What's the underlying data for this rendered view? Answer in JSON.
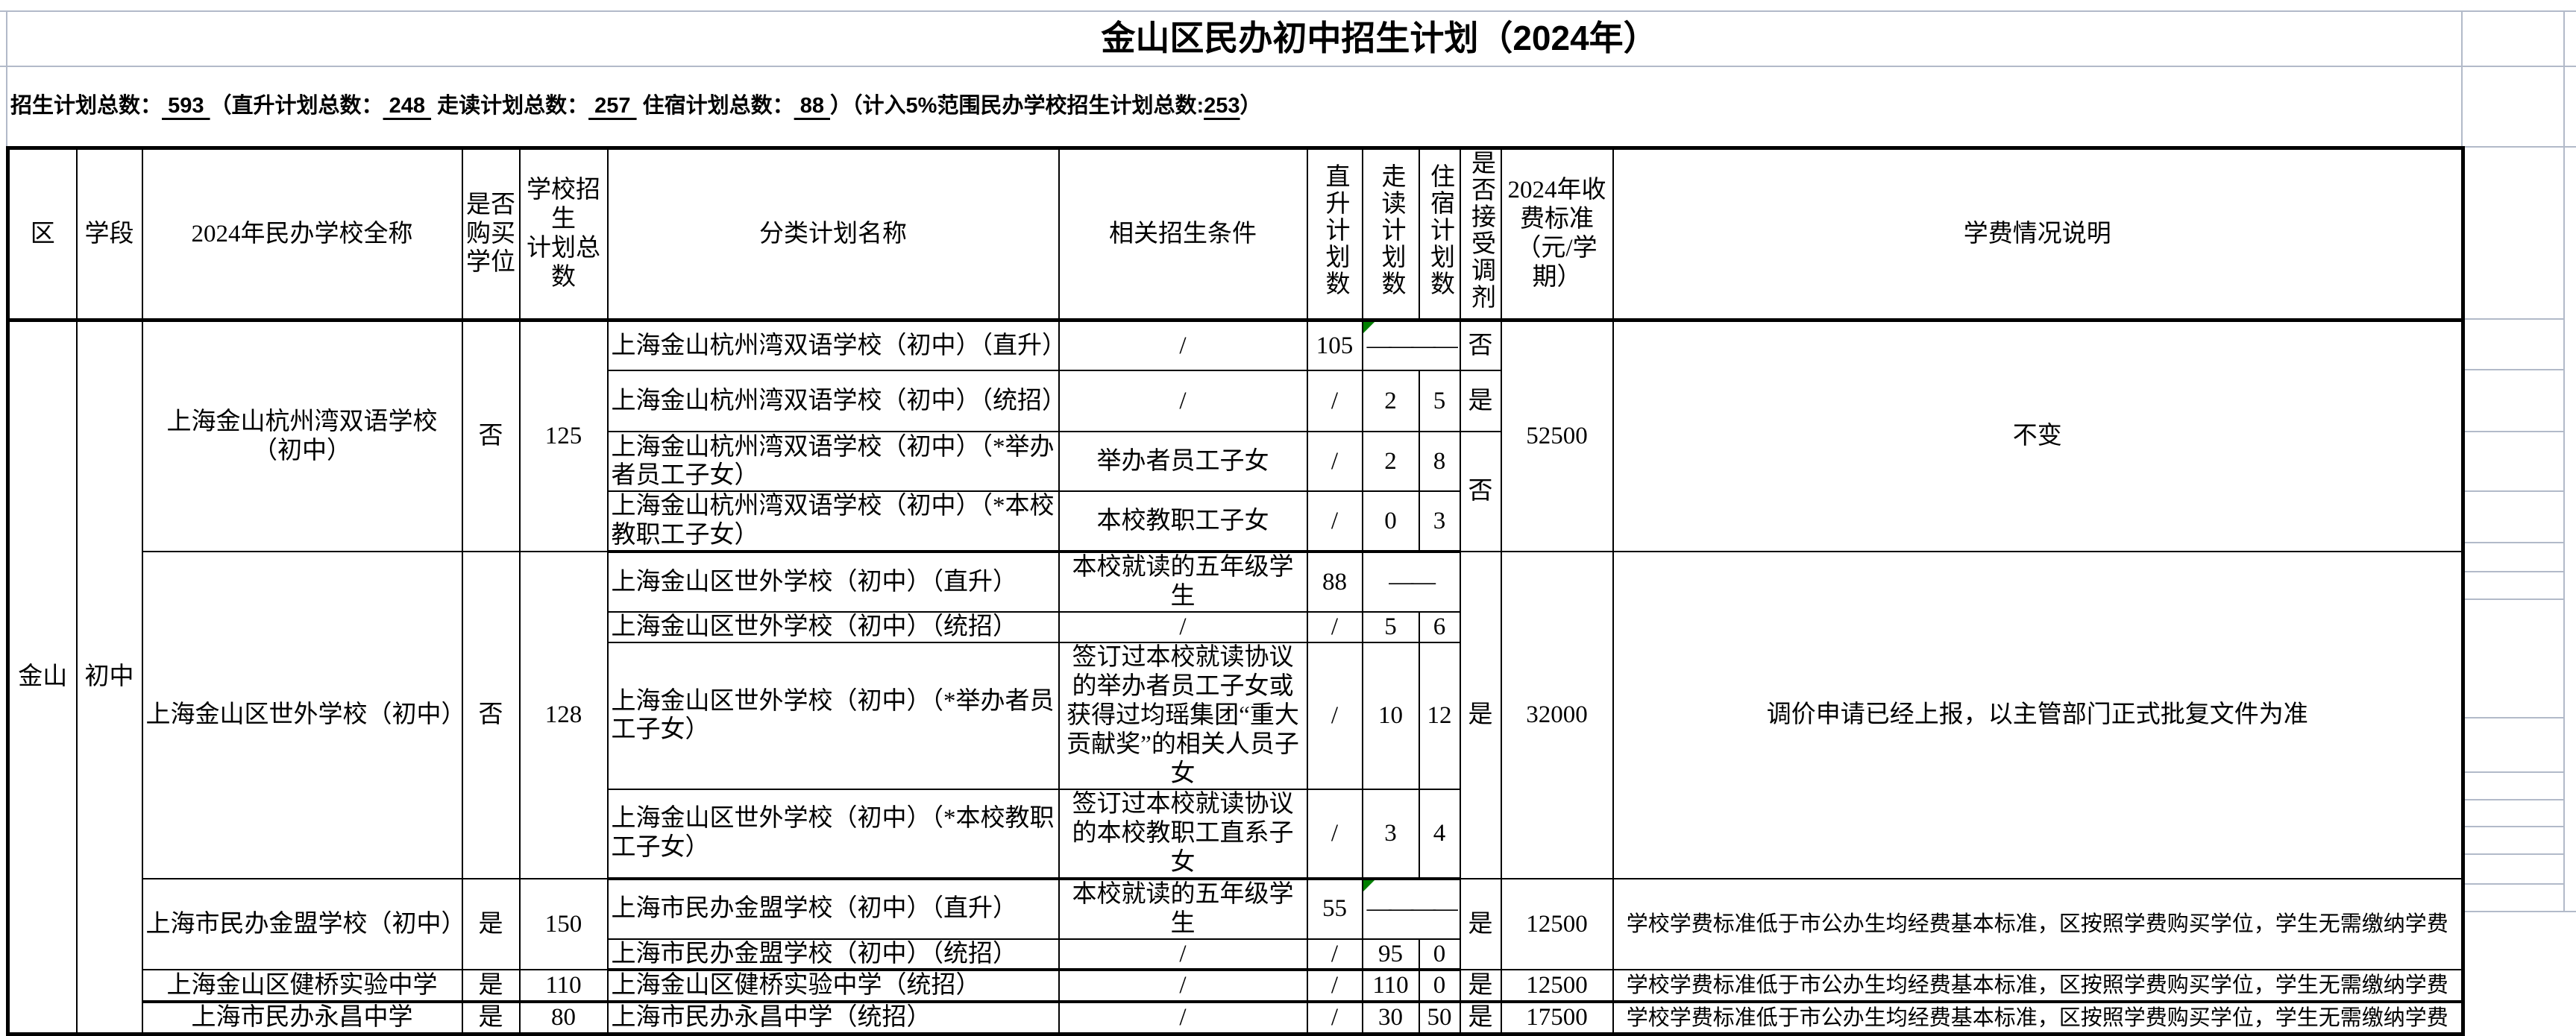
{
  "title": "金山区民办初中招生计划（2024年）",
  "summary": {
    "label_total": "招生计划总数：",
    "total": " 593 ",
    "label_direct": "（直升计划总数：",
    "direct": " 248 ",
    "label_walk": " 走读计划总数：",
    "walk": " 257 ",
    "label_board": " 住宿计划总数：",
    "board": " 88 ",
    "label_5pct": "）（计入5%范围民办学校招生计划总数:",
    "pct5": "253",
    "close": "）"
  },
  "columns": {
    "region": "区",
    "stage": "学段",
    "school": "2024年民办学校全称",
    "purchase": "是否购买学位",
    "school_total": "学校招生\n计划总数",
    "plan": "分类计划名称",
    "cond": "相关招生条件",
    "direct": "直升计划数",
    "walk": "走读计划数",
    "board": "住宿计划数",
    "adjust": "是否接受调剂",
    "fee": "2024年收费标准（元/学期）",
    "fee_note": "学费情况说明"
  },
  "region": "金山",
  "stage": "初中",
  "flag_color": "#008000",
  "schools": [
    {
      "name": "上海金山杭州湾双语学校（初中）",
      "purchase": "否",
      "total": "125",
      "fee": "52500",
      "fee_note": "不变",
      "plans": [
        {
          "plan": "上海金山杭州湾双语学校（初中）（直升）",
          "cond": "/",
          "direct": "105",
          "dash": "————",
          "adjust": "否"
        },
        {
          "plan": "上海金山杭州湾双语学校（初中）（统招）",
          "cond": "/",
          "direct": "/",
          "walk": "2",
          "board": "5",
          "adjust": "是"
        },
        {
          "plan": "上海金山杭州湾双语学校（初中）（*举办者员工子女）",
          "cond": "举办者员工子女",
          "direct": "/",
          "walk": "2",
          "board": "8",
          "adjust": "否"
        },
        {
          "plan": "上海金山杭州湾双语学校（初中）（*本校教职工子女）",
          "cond": "本校教职工子女",
          "direct": "/",
          "walk": "0",
          "board": "3"
        }
      ]
    },
    {
      "name": "上海金山区世外学校（初中）",
      "purchase": "否",
      "total": "128",
      "fee": "32000",
      "fee_note": "调价申请已经上报，以主管部门正式批复文件为准",
      "adjust": "是",
      "plans": [
        {
          "plan": "上海金山区世外学校（初中）（直升）",
          "cond": "本校就读的五年级学生",
          "direct": "88",
          "dash": "——"
        },
        {
          "plan": "上海金山区世外学校（初中）（统招）",
          "cond": "/",
          "direct": "/",
          "walk": "5",
          "board": "6"
        },
        {
          "plan": "上海金山区世外学校（初中）（*举办者员工子女）",
          "cond": "签订过本校就读协议的举办者员工子女或获得过均瑶集团“重大贡献奖”的相关人员子女",
          "direct": "/",
          "walk": "10",
          "board": "12"
        },
        {
          "plan": "上海金山区世外学校（初中）（*本校教职工子女）",
          "cond": "签订过本校就读协议的本校教职工直系子女",
          "direct": "/",
          "walk": "3",
          "board": "4"
        }
      ]
    },
    {
      "name": "上海市民办金盟学校（初中）",
      "purchase": "是",
      "total": "150",
      "fee": "12500",
      "fee_note": "学校学费标准低于市公办生均经费基本标准，区按照学费购买学位，学生无需缴纳学费",
      "adjust": "是",
      "plans": [
        {
          "plan": "上海市民办金盟学校（初中）（直升）",
          "cond": "本校就读的五年级学生",
          "direct": "55",
          "dash": "————"
        },
        {
          "plan": "上海市民办金盟学校（初中）（统招）",
          "cond": "/",
          "direct": "/",
          "walk": "95",
          "board": "0"
        }
      ]
    },
    {
      "name": "上海金山区健桥实验中学",
      "purchase": "是",
      "total": "110",
      "fee": "12500",
      "fee_note": "学校学费标准低于市公办生均经费基本标准，区按照学费购买学位，学生无需缴纳学费",
      "plans": [
        {
          "plan": "上海金山区健桥实验中学（统招）",
          "cond": "/",
          "direct": "/",
          "walk": "110",
          "board": "0",
          "adjust": "是"
        }
      ]
    },
    {
      "name": "上海市民办永昌中学",
      "purchase": "是",
      "total": "80",
      "fee": "17500",
      "fee_note": "学校学费标准低于市公办生均经费基本标准，区按照学费购买学位，学生无需缴纳学费",
      "plans": [
        {
          "plan": "上海市民办永昌中学（统招）",
          "cond": "/",
          "direct": "/",
          "walk": "30",
          "board": "50",
          "adjust": "是"
        }
      ]
    }
  ]
}
